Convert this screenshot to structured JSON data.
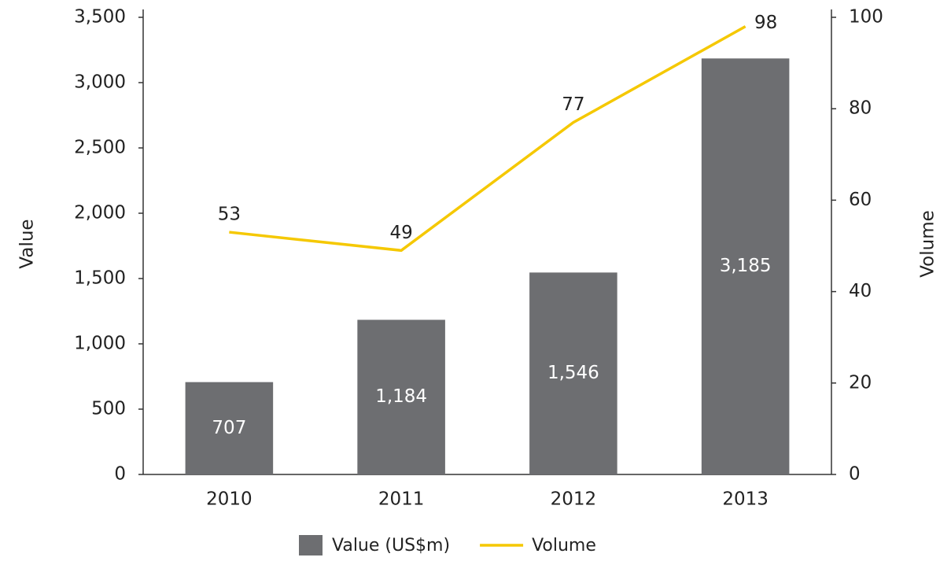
{
  "chart_data": {
    "type": "bar_line",
    "categories": [
      "2010",
      "2011",
      "2012",
      "2013"
    ],
    "y_label": "Value",
    "y2_label": "Volume",
    "ylim": [
      0,
      3500
    ],
    "yticks": [
      0,
      500,
      {
        "value": 1000,
        "label": "1,000"
      },
      {
        "value": 1500,
        "label": "1,500"
      },
      {
        "value": 2000,
        "label": "2,000"
      },
      {
        "value": 2500,
        "label": "2,500"
      },
      {
        "value": 3000,
        "label": "3,000"
      },
      {
        "value": 3500,
        "label": "3,500"
      }
    ],
    "y2lim": [
      0,
      100
    ],
    "y2ticks": [
      0,
      20,
      40,
      60,
      80,
      100
    ],
    "legend": "bottom",
    "series": [
      {
        "name": "Value (US$m)",
        "type": "bar",
        "color": "#6d6e71",
        "values": [
          707,
          1184,
          1546,
          3185
        ],
        "value_labels": [
          "707",
          "1,184",
          "1,546",
          "3,185"
        ]
      },
      {
        "name": "Volume",
        "type": "line",
        "axis": "y2",
        "color": "#f5c800",
        "values": [
          53,
          49,
          77,
          98
        ]
      }
    ]
  }
}
